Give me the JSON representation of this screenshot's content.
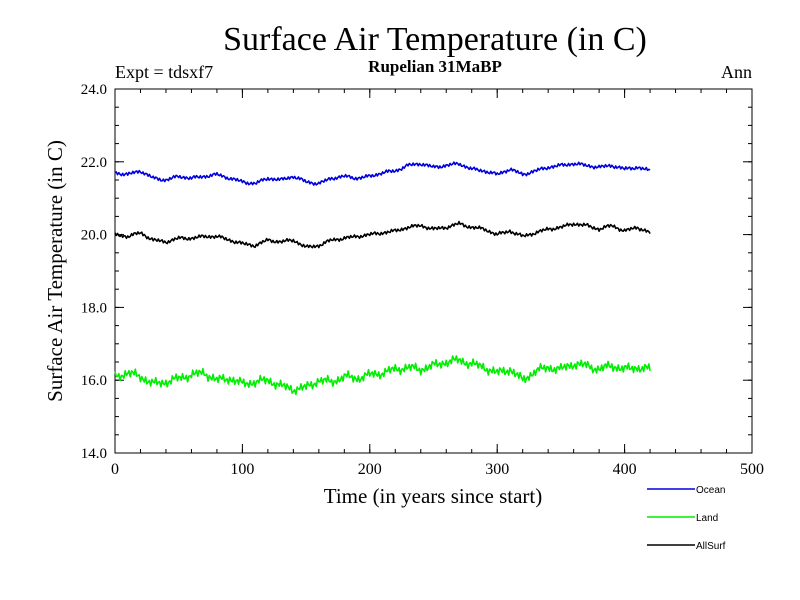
{
  "chart_data": {
    "type": "line",
    "title": "Surface Air Temperature (in C)",
    "subtitle": "Rupelian  31MaBP",
    "left_label": "Expt = tdsxf7",
    "right_label": "Ann",
    "xlabel": "Time (in years since start)",
    "ylabel": "Surface Air Temperature (in C)",
    "xlim": [
      0,
      500
    ],
    "ylim": [
      14,
      24
    ],
    "x_ticks": [
      0,
      100,
      200,
      300,
      400,
      500
    ],
    "x_tick_labels": [
      "0",
      "100",
      "200",
      "300",
      "400",
      "500"
    ],
    "y_ticks": [
      14,
      16,
      18,
      20,
      22,
      24
    ],
    "y_tick_labels": [
      "14.0",
      "16.0",
      "18.0",
      "20.0",
      "22.0",
      "24.0"
    ],
    "grid": false,
    "legend_position": "bottom-right",
    "series": [
      {
        "name": "Ocean",
        "color": "#0000dd",
        "x_start": 0,
        "x_step": 10,
        "values": [
          21.7,
          21.65,
          21.75,
          21.55,
          21.5,
          21.6,
          21.55,
          21.6,
          21.65,
          21.55,
          21.45,
          21.4,
          21.55,
          21.5,
          21.6,
          21.45,
          21.4,
          21.55,
          21.6,
          21.55,
          21.6,
          21.7,
          21.75,
          21.9,
          21.95,
          21.85,
          21.9,
          21.95,
          21.8,
          21.75,
          21.65,
          21.8,
          21.65,
          21.75,
          21.85,
          21.9,
          21.95,
          21.9,
          21.85,
          21.9,
          21.8,
          21.85,
          21.75
        ]
      },
      {
        "name": "Land",
        "color": "#00ee00",
        "x_start": 0,
        "x_step": 10,
        "values": [
          16.1,
          16.2,
          16.1,
          15.9,
          15.95,
          16.05,
          16.15,
          16.2,
          16.0,
          16.05,
          15.9,
          15.95,
          16.0,
          15.85,
          15.75,
          15.8,
          16.0,
          15.95,
          16.1,
          16.05,
          16.15,
          16.2,
          16.3,
          16.35,
          16.3,
          16.4,
          16.5,
          16.55,
          16.45,
          16.35,
          16.2,
          16.3,
          16.0,
          16.25,
          16.35,
          16.3,
          16.45,
          16.4,
          16.3,
          16.4,
          16.3,
          16.35,
          16.3
        ]
      },
      {
        "name": "AllSurf",
        "color": "#000000",
        "x_start": 0,
        "x_step": 10,
        "values": [
          20.0,
          19.95,
          20.05,
          19.85,
          19.8,
          19.9,
          19.9,
          19.95,
          19.95,
          19.85,
          19.75,
          19.7,
          19.85,
          19.8,
          19.85,
          19.65,
          19.7,
          19.85,
          19.9,
          19.95,
          20.0,
          20.05,
          20.1,
          20.2,
          20.25,
          20.15,
          20.2,
          20.3,
          20.2,
          20.15,
          20.0,
          20.1,
          19.95,
          20.05,
          20.15,
          20.2,
          20.3,
          20.25,
          20.15,
          20.25,
          20.1,
          20.2,
          20.05
        ]
      }
    ]
  }
}
